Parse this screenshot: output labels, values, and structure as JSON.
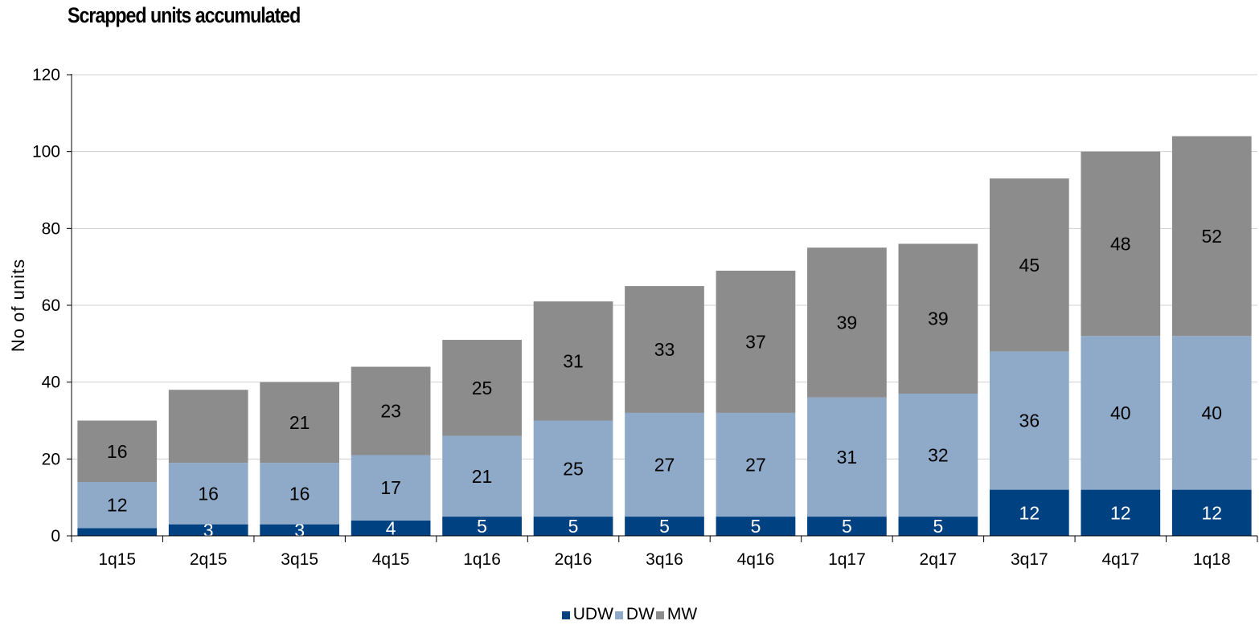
{
  "chart_data": {
    "type": "bar",
    "stacked": true,
    "title": "Scrapped units accumulated",
    "ylabel": "No of units",
    "xlabel": "",
    "ylim": [
      0,
      120
    ],
    "yticks": [
      0,
      20,
      40,
      60,
      80,
      100,
      120
    ],
    "grid": true,
    "legend_position": "bottom",
    "categories": [
      "1q15",
      "2q15",
      "3q15",
      "4q15",
      "1q16",
      "2q16",
      "3q16",
      "4q16",
      "1q17",
      "2q17",
      "3q17",
      "4q17",
      "1q18"
    ],
    "series": [
      {
        "name": "UDW",
        "color": "#004182",
        "label_color": "#ffffff",
        "values": [
          2,
          3,
          3,
          4,
          5,
          5,
          5,
          5,
          5,
          5,
          12,
          12,
          12
        ],
        "labels": [
          "",
          "3",
          "3",
          "4",
          "5",
          "5",
          "5",
          "5",
          "5",
          "5",
          "12",
          "12",
          "12"
        ]
      },
      {
        "name": "DW",
        "color": "#8eaac8",
        "label_color": "#000000",
        "values": [
          12,
          16,
          16,
          17,
          21,
          25,
          27,
          27,
          31,
          32,
          36,
          40,
          40
        ],
        "labels": [
          "12",
          "16",
          "16",
          "17",
          "21",
          "25",
          "27",
          "27",
          "31",
          "32",
          "36",
          "40",
          "40"
        ]
      },
      {
        "name": "MW",
        "color": "#8c8c8c",
        "label_color": "#000000",
        "values": [
          16,
          19,
          21,
          23,
          25,
          31,
          33,
          37,
          39,
          39,
          45,
          48,
          52
        ],
        "labels": [
          "16",
          "",
          "21",
          "23",
          "25",
          "31",
          "33",
          "37",
          "39",
          "39",
          "45",
          "48",
          "52"
        ]
      }
    ]
  }
}
